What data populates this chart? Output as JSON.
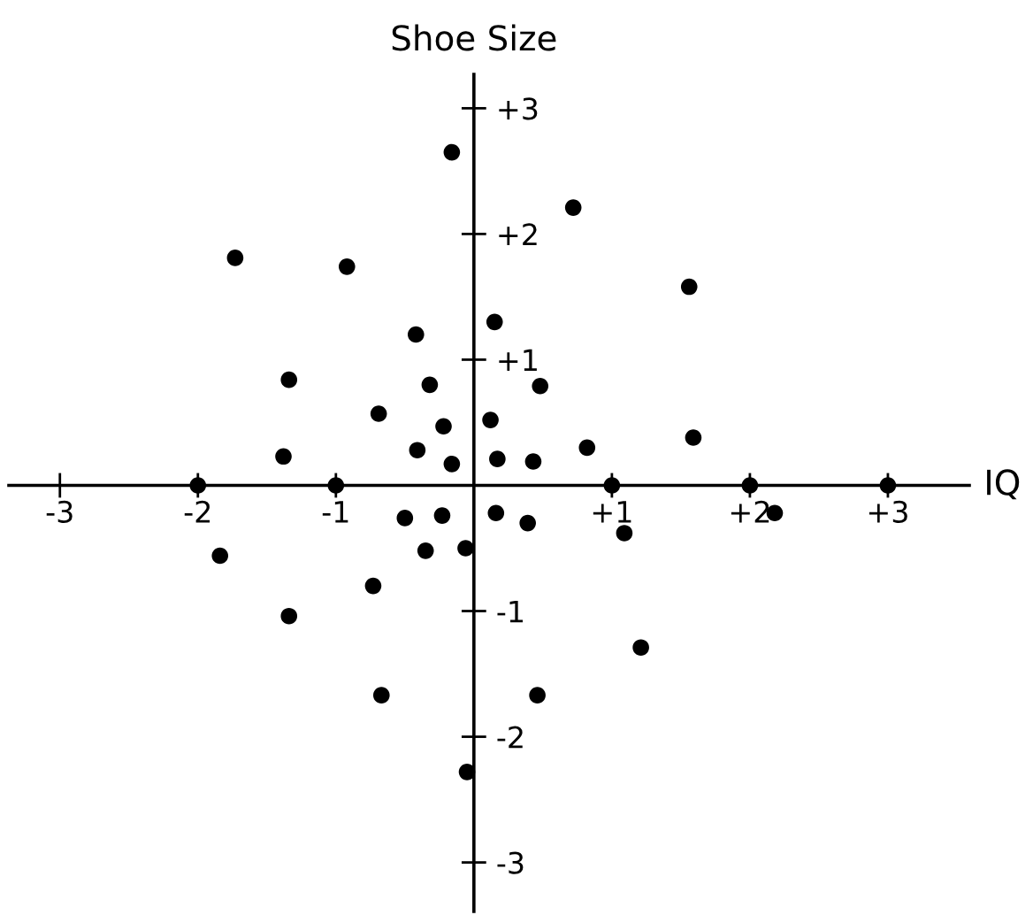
{
  "chart_data": {
    "type": "scatter",
    "xlabel": "IQ",
    "ylabel": "Shoe Size",
    "x": [
      -0.16,
      0.72,
      -1.73,
      -0.92,
      1.56,
      0.15,
      -0.42,
      -1.34,
      -0.32,
      0.48,
      -0.69,
      -0.22,
      0.12,
      1.59,
      -1.38,
      -0.41,
      0.82,
      -0.16,
      0.17,
      0.43,
      -2,
      -1,
      1,
      2,
      3,
      -0.5,
      -0.23,
      0.16,
      0.39,
      1.09,
      2.18,
      -1.84,
      -0.35,
      -0.06,
      -0.73,
      -1.34,
      1.21,
      -0.67,
      0.46,
      -0.05
    ],
    "values": [
      2.65,
      2.21,
      1.81,
      1.74,
      1.58,
      1.3,
      1.2,
      0.84,
      0.8,
      0.79,
      0.57,
      0.47,
      0.52,
      0.38,
      0.23,
      0.28,
      0.3,
      0.17,
      0.21,
      0.19,
      0,
      0,
      0,
      0,
      0,
      -0.26,
      -0.24,
      -0.22,
      -0.3,
      -0.38,
      -0.22,
      -0.56,
      -0.52,
      -0.5,
      -0.8,
      -1.04,
      -1.29,
      -1.67,
      -1.67,
      -2.28
    ],
    "color": "#000000",
    "marker": "circle",
    "grid": false,
    "legend": false,
    "xlim": [
      -3.37,
      3.59
    ],
    "ylim": [
      -3.39,
      3.27
    ],
    "xticks": [
      {
        "value": -3,
        "label": "-3"
      },
      {
        "value": -2,
        "label": "-2"
      },
      {
        "value": -1,
        "label": "-1"
      },
      {
        "value": 1,
        "label": "+1"
      },
      {
        "value": 2,
        "label": "+2"
      },
      {
        "value": 3,
        "label": "+3"
      }
    ],
    "yticks": [
      {
        "value": 3,
        "label": "+3"
      },
      {
        "value": 2,
        "label": "+2"
      },
      {
        "value": 1,
        "label": "+1"
      },
      {
        "value": -1,
        "label": "-1"
      },
      {
        "value": -2,
        "label": "-2"
      },
      {
        "value": -3,
        "label": "-3"
      }
    ]
  }
}
